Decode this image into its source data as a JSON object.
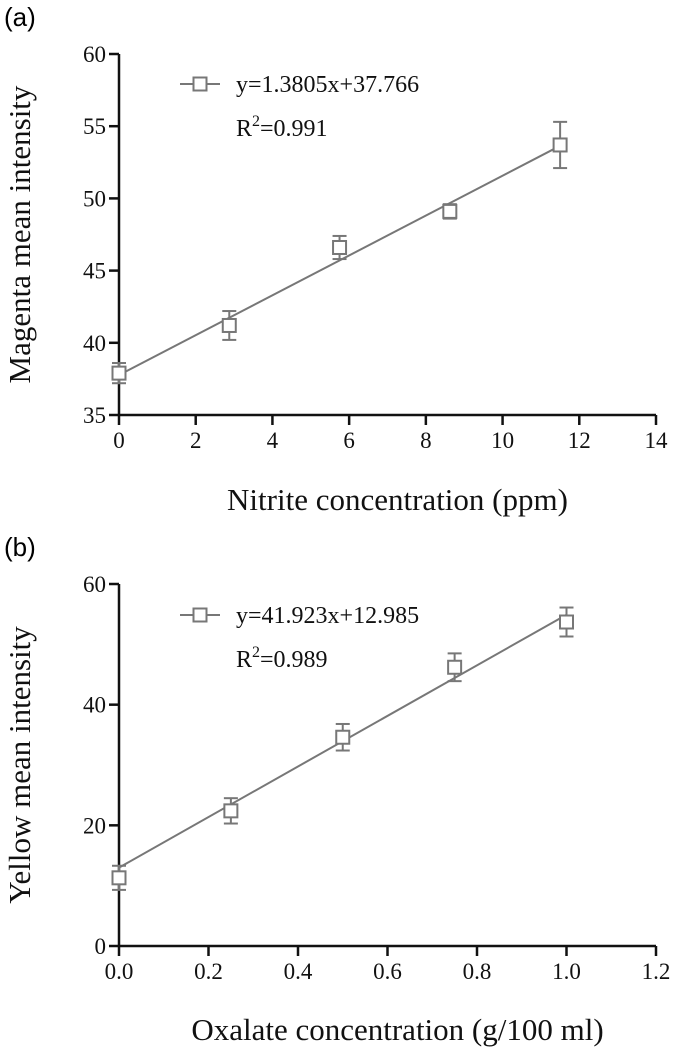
{
  "chart_data": [
    {
      "type": "scatter",
      "panel_label": "(a)",
      "xlabel": "Nitrite concentration (ppm)",
      "ylabel": "Magenta mean intensity",
      "xlim": [
        0,
        14
      ],
      "ylim": [
        35,
        60
      ],
      "x_ticks": [
        "0",
        "2",
        "4",
        "6",
        "8",
        "10",
        "12",
        "14"
      ],
      "y_ticks": [
        "35",
        "40",
        "45",
        "50",
        "55",
        "60"
      ],
      "series": [
        {
          "x": [
            0,
            2.875,
            5.75,
            8.625,
            11.5
          ],
          "y": [
            37.9,
            41.2,
            46.6,
            49.1,
            53.7
          ],
          "error": [
            0.7,
            1.0,
            0.8,
            0.5,
            1.6
          ],
          "marker": "open-square",
          "color": "#777777"
        }
      ],
      "fit": {
        "slope": 1.3805,
        "intercept": 37.766,
        "x_range": [
          0,
          11.5
        ]
      },
      "legend": {
        "equation": "y=1.3805x+37.766",
        "r2_prefix": "R",
        "r2_sup": "2",
        "r2_value": "=0.991",
        "position": "top-left"
      },
      "grid": false
    },
    {
      "type": "scatter",
      "panel_label": "(b)",
      "xlabel": "Oxalate concentration (g/100 ml)",
      "ylabel": "Yellow mean intensity",
      "xlim": [
        0.0,
        1.2
      ],
      "ylim": [
        0,
        60
      ],
      "x_ticks": [
        "0.0",
        "0.2",
        "0.4",
        "0.6",
        "0.8",
        "1.0",
        "1.2"
      ],
      "y_ticks": [
        "0",
        "20",
        "40",
        "60"
      ],
      "series": [
        {
          "x": [
            0.0,
            0.25,
            0.5,
            0.75,
            1.0
          ],
          "y": [
            11.3,
            22.4,
            34.6,
            46.2,
            53.7
          ],
          "error": [
            2.0,
            2.1,
            2.2,
            2.3,
            2.4
          ],
          "marker": "open-square",
          "color": "#777777"
        }
      ],
      "fit": {
        "slope": 41.923,
        "intercept": 12.985,
        "x_range": [
          0,
          1.0
        ]
      },
      "legend": {
        "equation": "y=41.923x+12.985",
        "r2_prefix": "R",
        "r2_sup": "2",
        "r2_value": "=0.989",
        "position": "top-left"
      },
      "grid": false
    }
  ]
}
